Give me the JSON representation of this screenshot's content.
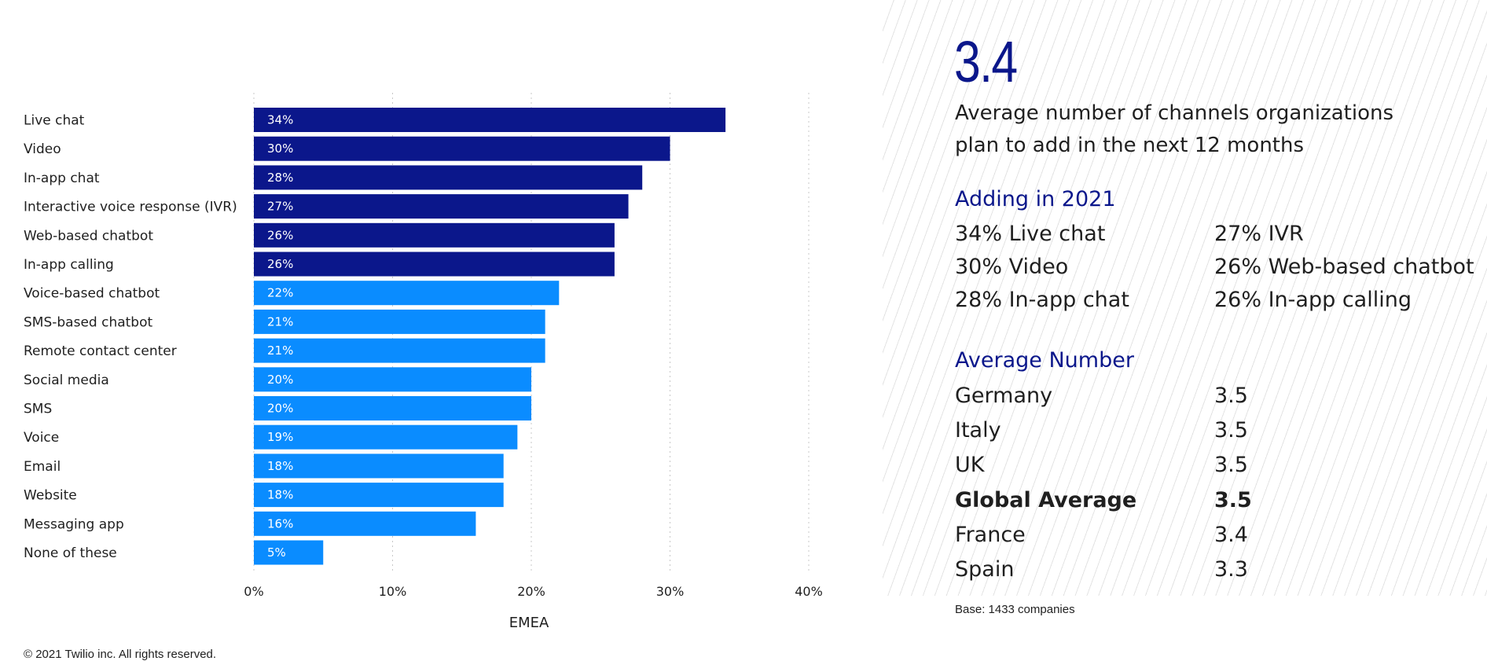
{
  "chart_data": {
    "type": "bar",
    "orientation": "horizontal",
    "categories": [
      "Live chat",
      "Video",
      "In-app chat",
      "Interactive voice response (IVR)",
      "Web-based chatbot",
      "In-app calling",
      "Voice-based chatbot",
      "SMS-based chatbot",
      "Remote contact center",
      "Social media",
      "SMS",
      "Voice",
      "Email",
      "Website",
      "Messaging app",
      "None of these"
    ],
    "values": [
      34,
      30,
      28,
      27,
      26,
      26,
      22,
      21,
      21,
      20,
      20,
      19,
      18,
      18,
      16,
      5
    ],
    "data_labels": [
      "34%",
      "30%",
      "28%",
      "27%",
      "26%",
      "26%",
      "22%",
      "21%",
      "21%",
      "20%",
      "20%",
      "19%",
      "18%",
      "18%",
      "16%",
      "5%"
    ],
    "highlight_count": 6,
    "colors": {
      "highlight": "#0b178b",
      "default": "#0a8cff"
    },
    "xlim": [
      0,
      40
    ],
    "xticks": [
      0,
      10,
      20,
      30,
      40
    ],
    "xtick_labels": [
      "0%",
      "10%",
      "20%",
      "30%",
      "40%"
    ],
    "xlabel": "EMEA",
    "grid": "vertical dotted"
  },
  "footer": {
    "copyright": "© 2021 Twilio inc. All rights reserved."
  },
  "panel": {
    "big_number": "3.4",
    "big_number_desc": "Average number of channels organizations plan to add in the next 12 months",
    "adding_title": "Adding in 2021",
    "adding_left": [
      "34% Live chat",
      "30% Video",
      "28% In-app chat"
    ],
    "adding_right": [
      "27% IVR",
      "26% Web-based chatbot",
      "26% In-app calling"
    ],
    "average_title": "Average Number",
    "averages": [
      {
        "country": "Germany",
        "value": "3.5",
        "bold": false
      },
      {
        "country": "Italy",
        "value": "3.5",
        "bold": false
      },
      {
        "country": "UK",
        "value": "3.5",
        "bold": false
      },
      {
        "country": "Global Average",
        "value": "3.5",
        "bold": true
      },
      {
        "country": "France",
        "value": "3.4",
        "bold": false
      },
      {
        "country": "Spain",
        "value": "3.3",
        "bold": false
      }
    ],
    "base_note": "Base: 1433 companies"
  }
}
